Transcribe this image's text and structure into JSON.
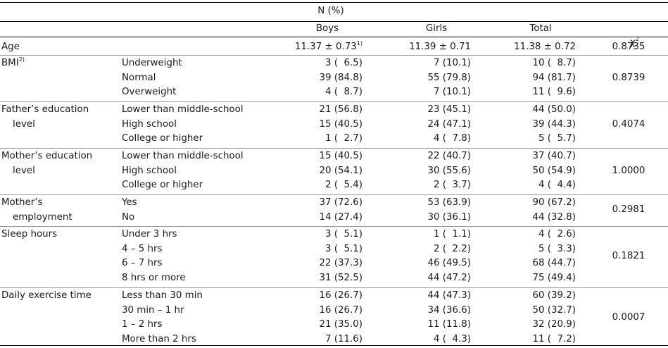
{
  "header": {
    "group": "N (%)",
    "boys": "Boys",
    "girls": "Girls",
    "total": "Total",
    "chi": "χ",
    "chi_sup": "2"
  },
  "rows": [
    {
      "label": "Age",
      "label_sup": "",
      "label2": "",
      "items": [
        {
          "cat": "",
          "boys": "11.37 ± 0.73",
          "boys_sup": "1)",
          "girls": "11.39 ± 0.71",
          "total": "11.38 ± 0.72"
        }
      ],
      "chi": "0.8735"
    },
    {
      "label": "BMI",
      "label_sup": "2)",
      "label2": "",
      "items": [
        {
          "cat": "Underweight",
          "boys": "3 (  6.5)",
          "girls": "7 (10.1)",
          "total": "10 (  8.7)"
        },
        {
          "cat": "Normal",
          "boys": "39 (84.8)",
          "girls": "55 (79.8)",
          "total": "94 (81.7)"
        },
        {
          "cat": "Overweight",
          "boys": "4 (  8.7)",
          "girls": "7 (10.1)",
          "total": "11 (  9.6)"
        }
      ],
      "chi": "0.8739"
    },
    {
      "label": "Father’s education",
      "label_sup": "",
      "label2": "level",
      "items": [
        {
          "cat": "Lower than middle-school",
          "boys": "21 (56.8)",
          "girls": "23 (45.1)",
          "total": "44 (50.0)"
        },
        {
          "cat": "High school",
          "boys": "15 (40.5)",
          "girls": "24 (47.1)",
          "total": "39 (44.3)"
        },
        {
          "cat": "College or higher",
          "boys": "1 (  2.7)",
          "girls": "4 (  7.8)",
          "total": "5 (  5.7)"
        }
      ],
      "chi": "0.4074"
    },
    {
      "label": "Mother’s education",
      "label_sup": "",
      "label2": "level",
      "items": [
        {
          "cat": "Lower than middle-school",
          "boys": "15 (40.5)",
          "girls": "22 (40.7)",
          "total": "37 (40.7)"
        },
        {
          "cat": "High school",
          "boys": "20 (54.1)",
          "girls": "30 (55.6)",
          "total": "50 (54.9)"
        },
        {
          "cat": "College or higher",
          "boys": "2 (  5.4)",
          "girls": "2 (  3.7)",
          "total": "4 (  4.4)"
        }
      ],
      "chi": "1.0000"
    },
    {
      "label": "Mother’s",
      "label_sup": "",
      "label2": "employment",
      "items": [
        {
          "cat": "Yes",
          "boys": "37 (72.6)",
          "girls": "53 (63.9)",
          "total": "90 (67.2)"
        },
        {
          "cat": "No",
          "boys": "14 (27.4)",
          "girls": "30 (36.1)",
          "total": "44 (32.8)"
        }
      ],
      "chi": "0.2981"
    },
    {
      "label": "Sleep hours",
      "label_sup": "",
      "label2": "",
      "items": [
        {
          "cat": "Under 3 hrs",
          "boys": "3 (  5.1)",
          "girls": "1 (  1.1)",
          "total": "4 (  2.6)"
        },
        {
          "cat": "4 – 5 hrs",
          "boys": "3 (  5.1)",
          "girls": "2 (  2.2)",
          "total": "5 (  3.3)"
        },
        {
          "cat": "6 – 7 hrs",
          "boys": "22 (37.3)",
          "girls": "46 (49.5)",
          "total": "68 (44.7)"
        },
        {
          "cat": "8 hrs or more",
          "boys": "31 (52.5)",
          "girls": "44 (47.2)",
          "total": "75 (49.4)"
        }
      ],
      "chi": "0.1821"
    },
    {
      "label": "Daily exercise time",
      "label_sup": "",
      "label2": "",
      "items": [
        {
          "cat": "Less than 30 min",
          "boys": "16 (26.7)",
          "girls": "44 (47.3)",
          "total": "60 (39.2)"
        },
        {
          "cat": "30 min – 1 hr",
          "boys": "16 (26.7)",
          "girls": "34 (36.6)",
          "total": "50 (32.7)"
        },
        {
          "cat": "1 – 2 hrs",
          "boys": "21 (35.0)",
          "girls": "11 (11.8)",
          "total": "32 (20.9)"
        },
        {
          "cat": "More than 2 hrs",
          "boys": "7 (11.6)",
          "girls": "4 (  4.3)",
          "total": "11 (  7.2)"
        }
      ],
      "chi": "0.0007"
    }
  ]
}
